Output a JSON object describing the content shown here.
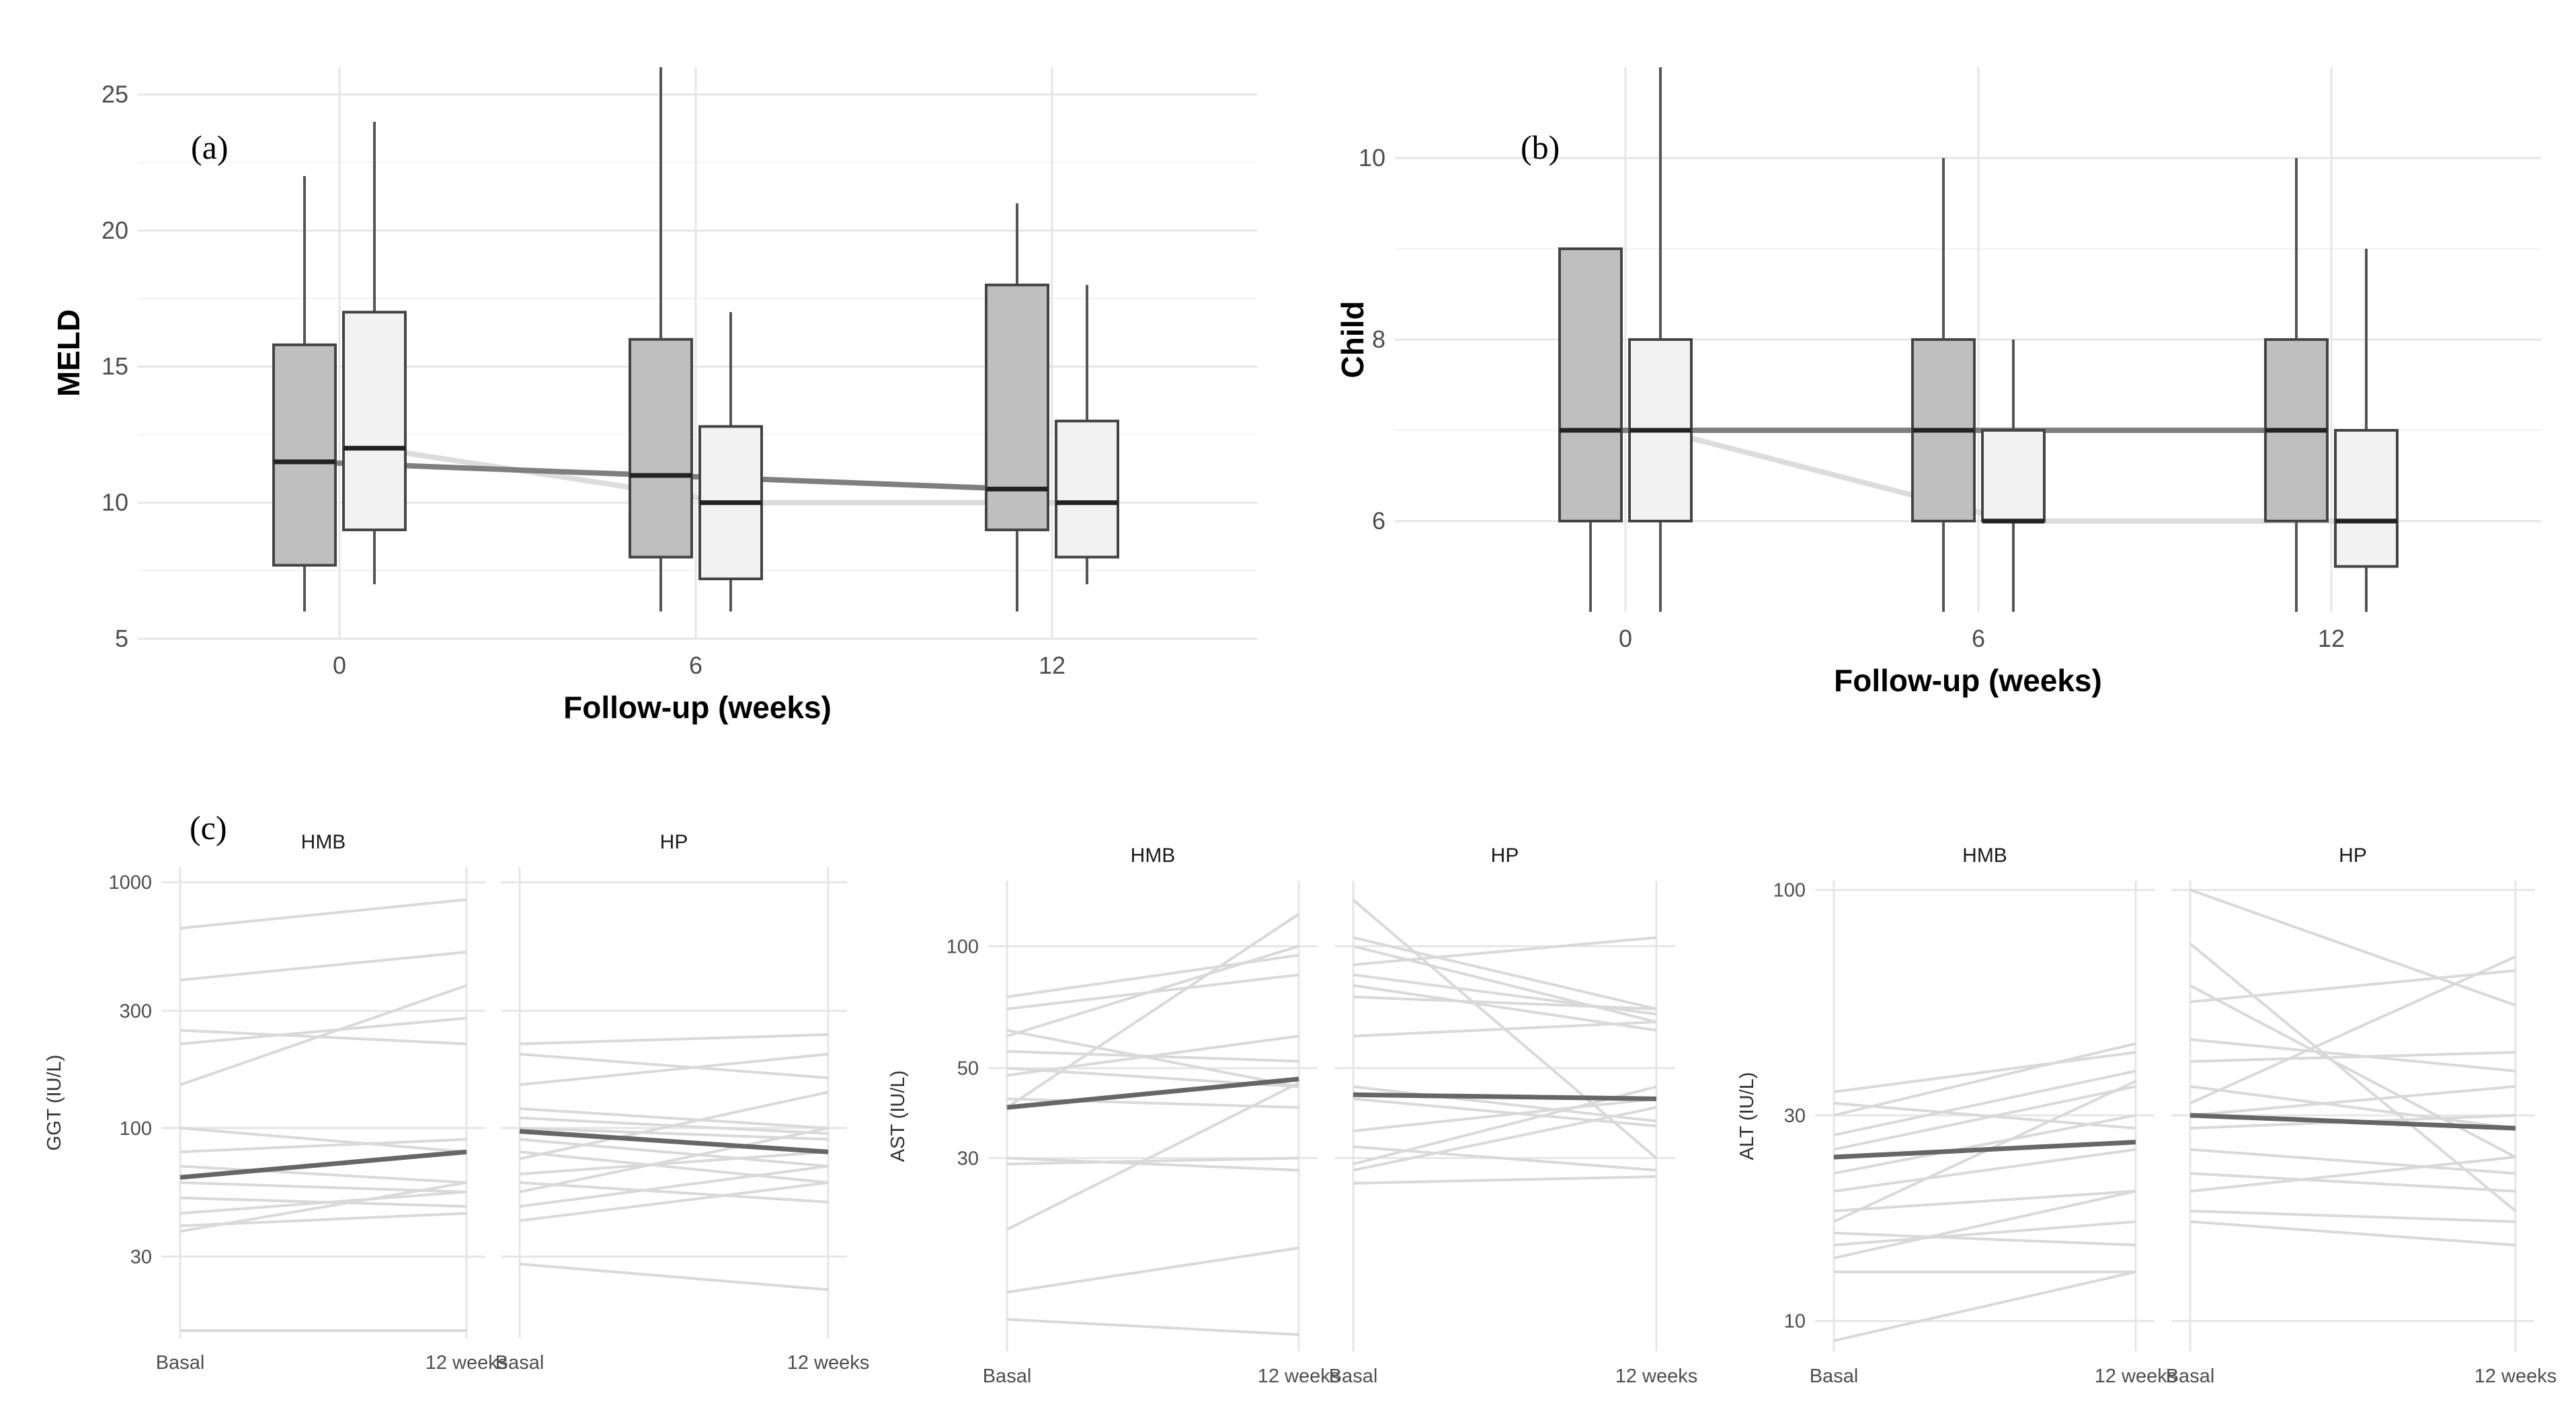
{
  "chart_data": [
    {
      "panel_label": "(a)",
      "type": "box",
      "title": "",
      "xlabel": "Follow-up (weeks)",
      "ylabel": "MELD",
      "categories": [
        "0",
        "6",
        "12"
      ],
      "yticks": [
        "5",
        "10",
        "15",
        "20",
        "25"
      ],
      "ylim": [
        5,
        26
      ],
      "groups": [
        {
          "name": "group-dark",
          "color": "#bfbfbf",
          "boxes": [
            {
              "min": 6,
              "q1": 7.7,
              "median": 11.5,
              "q3": 15.8,
              "max": 22
            },
            {
              "min": 6,
              "q1": 8,
              "median": 11,
              "q3": 16,
              "max": 26
            },
            {
              "min": 6,
              "q1": 9,
              "median": 10.5,
              "q3": 18,
              "max": 21
            }
          ],
          "trend": [
            11.5,
            11,
            10.5
          ]
        },
        {
          "name": "group-light",
          "color": "#f2f2f2",
          "boxes": [
            {
              "min": 7,
              "q1": 9,
              "median": 12,
              "q3": 17,
              "max": 24
            },
            {
              "min": 6,
              "q1": 7.2,
              "median": 10,
              "q3": 12.8,
              "max": 17
            },
            {
              "min": 7,
              "q1": 8,
              "median": 10,
              "q3": 13,
              "max": 18
            }
          ],
          "trend": [
            12,
            10,
            10
          ]
        }
      ]
    },
    {
      "panel_label": "(b)",
      "type": "box",
      "title": "",
      "xlabel": "Follow-up (weeks)",
      "ylabel": "Child",
      "categories": [
        "0",
        "6",
        "12"
      ],
      "yticks": [
        "6",
        "8",
        "10"
      ],
      "ylim": [
        5,
        11
      ],
      "groups": [
        {
          "name": "group-dark",
          "color": "#bfbfbf",
          "boxes": [
            {
              "min": 5,
              "q1": 6,
              "median": 7,
              "q3": 9,
              "max": 9
            },
            {
              "min": 5,
              "q1": 6,
              "median": 7,
              "q3": 8,
              "max": 10
            },
            {
              "min": 5,
              "q1": 6,
              "median": 7,
              "q3": 8,
              "max": 10
            }
          ],
          "trend": [
            7,
            7,
            7
          ]
        },
        {
          "name": "group-light",
          "color": "#f2f2f2",
          "boxes": [
            {
              "min": 5,
              "q1": 6,
              "median": 7,
              "q3": 8,
              "max": 11
            },
            {
              "min": 5,
              "q1": 6,
              "median": 6,
              "q3": 7,
              "max": 8
            },
            {
              "min": 5,
              "q1": 5.5,
              "median": 6,
              "q3": 7,
              "max": 9
            }
          ],
          "trend": [
            7,
            6,
            6
          ]
        }
      ]
    },
    {
      "panel_label": "(c)",
      "type": "line",
      "scale": "log",
      "ylabel": "GGT (IU/L)",
      "ylim": [
        14,
        1150
      ],
      "yticks": [
        "30",
        "100",
        "300",
        "1000"
      ],
      "ytick_values": [
        30,
        100,
        300,
        1000
      ],
      "x": [
        "Basal",
        "12 weeks"
      ],
      "facets": [
        {
          "name": "HMB",
          "series": [
            [
              650,
              850
            ],
            [
              400,
              520
            ],
            [
              250,
              220
            ],
            [
              220,
              280
            ],
            [
              150,
              380
            ],
            [
              100,
              80
            ],
            [
              80,
              90
            ],
            [
              70,
              60
            ],
            [
              60,
              55
            ],
            [
              52,
              48
            ],
            [
              45,
              55
            ],
            [
              40,
              45
            ],
            [
              38,
              60
            ],
            [
              15,
              15
            ]
          ],
          "mean": [
            63,
            80
          ]
        },
        {
          "name": "HP",
          "series": [
            [
              220,
              240
            ],
            [
              200,
              160
            ],
            [
              150,
              200
            ],
            [
              120,
              100
            ],
            [
              110,
              95
            ],
            [
              100,
              90
            ],
            [
              90,
              70
            ],
            [
              80,
              60
            ],
            [
              75,
              140
            ],
            [
              65,
              80
            ],
            [
              60,
              50
            ],
            [
              55,
              100
            ],
            [
              48,
              70
            ],
            [
              42,
              60
            ],
            [
              28,
              22
            ]
          ],
          "mean": [
            97,
            80
          ]
        }
      ]
    },
    {
      "type": "line",
      "scale": "log",
      "ylabel": "AST (IU/L)",
      "ylim": [
        10,
        145
      ],
      "yticks": [
        "30",
        "50",
        "100"
      ],
      "ytick_values": [
        30,
        50,
        100
      ],
      "x": [
        "Basal",
        "12 weeks"
      ],
      "facets": [
        {
          "name": "HMB",
          "series": [
            [
              75,
              95
            ],
            [
              70,
              85
            ],
            [
              62,
              45
            ],
            [
              60,
              100
            ],
            [
              55,
              52
            ],
            [
              50,
              45
            ],
            [
              48,
              60
            ],
            [
              42,
              40
            ],
            [
              40,
              120
            ],
            [
              30,
              28
            ],
            [
              29,
              30
            ],
            [
              20,
              46
            ],
            [
              14,
              18
            ],
            [
              12,
              11
            ]
          ],
          "mean": [
            40,
            47
          ]
        },
        {
          "name": "HP",
          "series": [
            [
              130,
              30
            ],
            [
              105,
              70
            ],
            [
              100,
              65
            ],
            [
              90,
              105
            ],
            [
              85,
              68
            ],
            [
              80,
              62
            ],
            [
              75,
              70
            ],
            [
              60,
              65
            ],
            [
              45,
              37
            ],
            [
              42,
              36
            ],
            [
              35,
              42
            ],
            [
              32,
              28
            ],
            [
              29,
              45
            ],
            [
              28,
              40
            ],
            [
              26,
              27
            ]
          ],
          "mean": [
            43,
            42
          ]
        }
      ]
    },
    {
      "type": "line",
      "scale": "log",
      "ylabel": "ALT (IU/L)",
      "ylim": [
        8.5,
        105
      ],
      "yticks": [
        "10",
        "30",
        "100"
      ],
      "ytick_values": [
        10,
        30,
        100
      ],
      "x": [
        "Basal",
        "12 weeks"
      ],
      "facets": [
        {
          "name": "HMB",
          "series": [
            [
              34,
              42
            ],
            [
              32,
              28
            ],
            [
              30,
              44
            ],
            [
              27,
              38
            ],
            [
              25,
              35
            ],
            [
              22,
              30
            ],
            [
              20,
              25
            ],
            [
              18,
              20
            ],
            [
              17,
              36
            ],
            [
              16,
              15
            ],
            [
              15,
              17
            ],
            [
              14,
              20
            ],
            [
              13,
              13
            ],
            [
              9,
              13
            ]
          ],
          "mean": [
            24,
            26
          ]
        },
        {
          "name": "HP",
          "series": [
            [
              100,
              54
            ],
            [
              75,
              18
            ],
            [
              60,
              24
            ],
            [
              55,
              65
            ],
            [
              45,
              38
            ],
            [
              40,
              42
            ],
            [
              35,
              28
            ],
            [
              32,
              70
            ],
            [
              30,
              35
            ],
            [
              28,
              30
            ],
            [
              25,
              22
            ],
            [
              22,
              20
            ],
            [
              20,
              24
            ],
            [
              18,
              17
            ],
            [
              17,
              15
            ]
          ],
          "mean": [
            30,
            28
          ]
        }
      ]
    }
  ]
}
